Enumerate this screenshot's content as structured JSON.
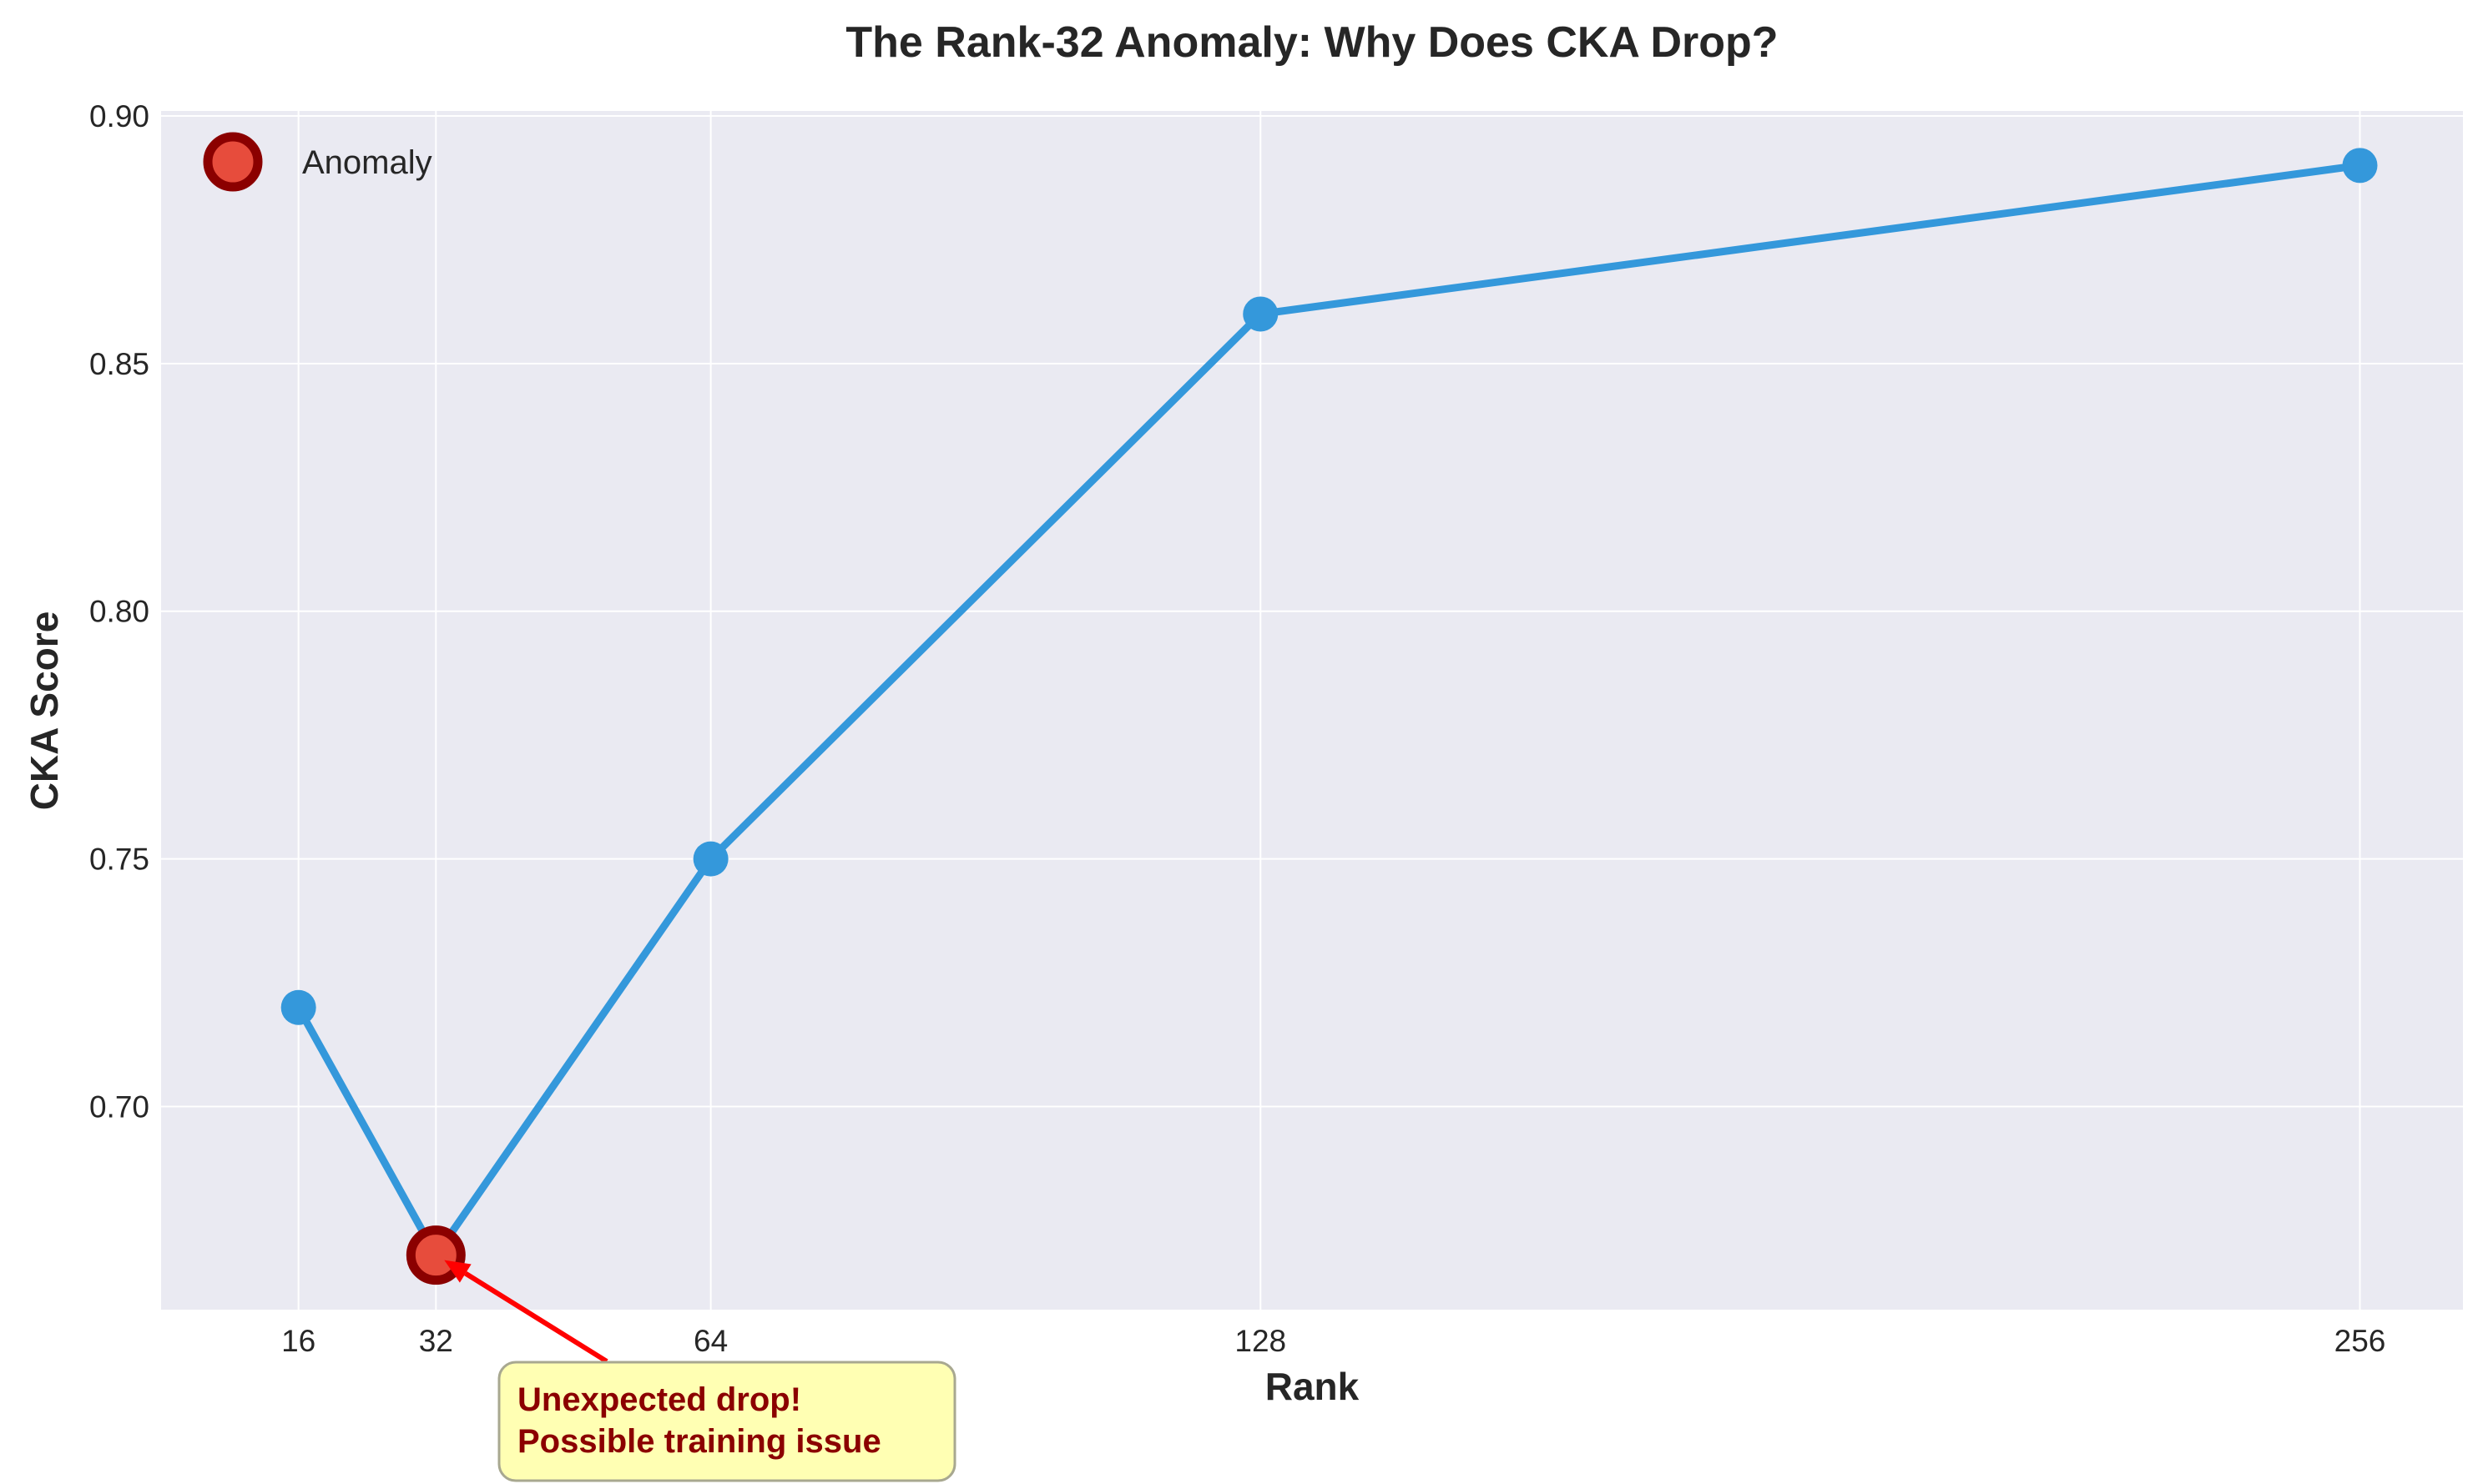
{
  "chart_data": {
    "type": "line",
    "title": "The Rank-32 Anomaly: Why Does CKA Drop?",
    "xlabel": "Rank",
    "ylabel": "CKA Score",
    "x": [
      16,
      32,
      64,
      128,
      256
    ],
    "series": [
      {
        "values": [
          0.72,
          0.67,
          0.75,
          0.86,
          0.89
        ],
        "color": "#3498db"
      }
    ],
    "xticks": [
      "16",
      "32",
      "64",
      "128",
      "256"
    ],
    "yticks": [
      "0.70",
      "0.75",
      "0.80",
      "0.85",
      "0.90"
    ],
    "xlim": [
      0,
      268
    ],
    "ylim": [
      0.659,
      0.901
    ],
    "grid": true,
    "legend": {
      "position": "upper left",
      "entries": [
        "Anomaly"
      ]
    },
    "anomaly": {
      "x": 32,
      "y": 0.67,
      "fill_color": "#e74c3c",
      "edge_color": "#8b0000",
      "label": "Anomaly"
    },
    "annotation": {
      "target_x": 32,
      "target_y": 0.67,
      "lines": [
        "Unexpected drop!",
        "Possible training issue"
      ],
      "text_color": "#8b0000",
      "box_color": "#ffffb3",
      "arrow_color": "#ff0000"
    },
    "colors": {
      "plot_background": "#eaeaf2",
      "grid": "#ffffff"
    }
  }
}
